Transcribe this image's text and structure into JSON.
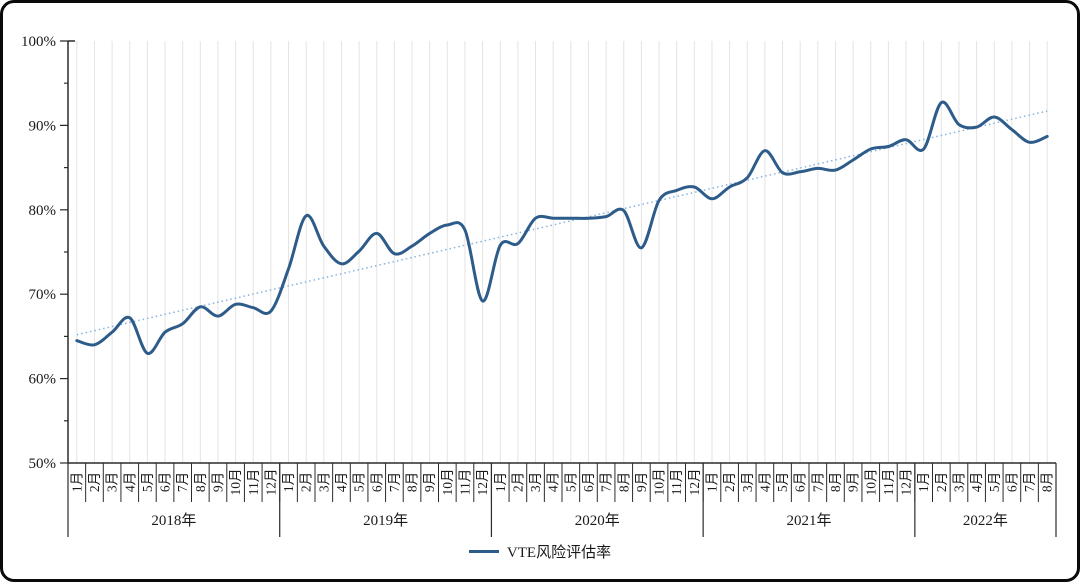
{
  "frame": {
    "background": "#ffffff",
    "border_color": "#0a0a0a"
  },
  "legend": {
    "label": "VTE风险评估率",
    "marker": "line-swatch",
    "color": "#2e5c8a"
  },
  "chart_data": {
    "type": "line",
    "title": "",
    "legend_position": "bottom-center",
    "y_axis": {
      "min": 50,
      "max": 100,
      "major_step": 10,
      "minor_step": 5,
      "tick_labels": [
        "50%",
        "60%",
        "70%",
        "80%",
        "90%",
        "100%"
      ],
      "unit": "%"
    },
    "grid": {
      "vertical": true,
      "horizontal": false,
      "color": "#e4e4e4"
    },
    "axis_color": "#2b2b2b",
    "years": [
      {
        "label": "2018年",
        "months": [
          "1月",
          "2月",
          "3月",
          "4月",
          "5月",
          "6月",
          "7月",
          "8月",
          "9月",
          "10月",
          "11月",
          "12月"
        ]
      },
      {
        "label": "2019年",
        "months": [
          "1月",
          "2月",
          "3月",
          "4月",
          "5月",
          "6月",
          "7月",
          "8月",
          "9月",
          "10月",
          "11月",
          "12月"
        ]
      },
      {
        "label": "2020年",
        "months": [
          "1月",
          "2月",
          "3月",
          "4月",
          "5月",
          "6月",
          "7月",
          "8月",
          "9月",
          "10月",
          "11月",
          "12月"
        ]
      },
      {
        "label": "2021年",
        "months": [
          "1月",
          "2月",
          "3月",
          "4月",
          "5月",
          "6月",
          "7月",
          "8月",
          "9月",
          "10月",
          "11月",
          "12月"
        ]
      },
      {
        "label": "2022年",
        "months": [
          "1月",
          "2月",
          "3月",
          "4月",
          "5月",
          "6月",
          "7月",
          "8月"
        ]
      }
    ],
    "series": [
      {
        "name": "VTE风险评估率",
        "color": "#2e5c8a",
        "smooth": true,
        "values": [
          64.5,
          64.0,
          65.5,
          67.2,
          63.0,
          65.5,
          66.5,
          68.5,
          67.4,
          68.8,
          68.4,
          68.0,
          73.0,
          79.3,
          75.7,
          73.6,
          75.1,
          77.2,
          74.8,
          75.7,
          77.2,
          78.2,
          77.6,
          69.2,
          75.8,
          76.0,
          79.0,
          79.0,
          79.0,
          79.0,
          79.2,
          79.9,
          75.5,
          81.1,
          82.3,
          82.7,
          81.3,
          82.7,
          83.8,
          87.0,
          84.4,
          84.5,
          84.9,
          84.7,
          85.9,
          87.2,
          87.5,
          88.3,
          87.2,
          92.7,
          90.1,
          89.8,
          91.0,
          89.5,
          88.0,
          88.7
        ]
      }
    ],
    "trendline": {
      "style": "dotted",
      "color": "#85b3df",
      "start_value": 65.2,
      "end_value": 91.7
    }
  }
}
